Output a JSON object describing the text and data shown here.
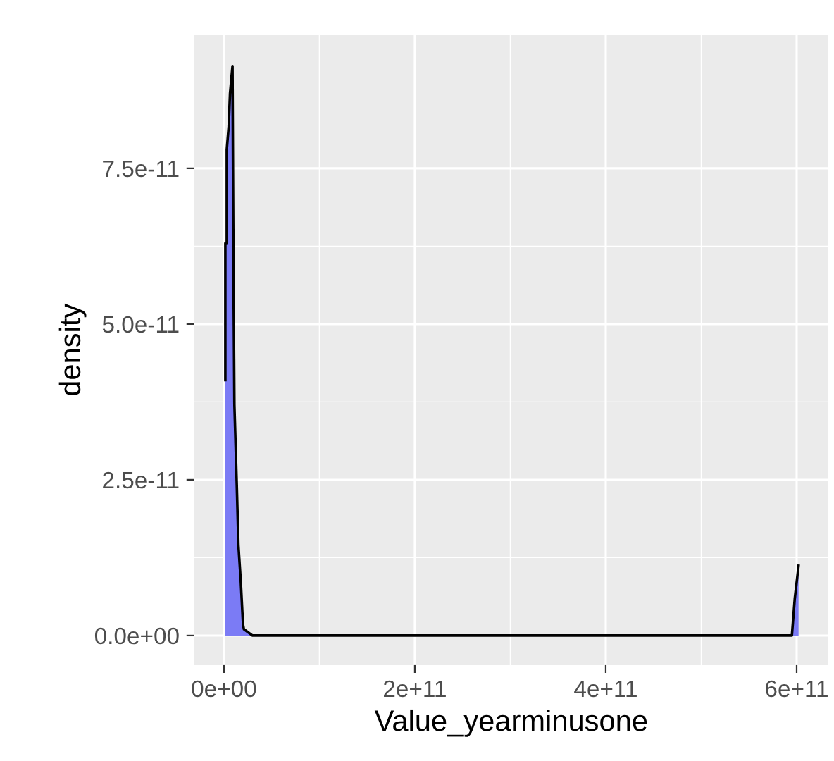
{
  "chart_data": {
    "type": "area",
    "xlabel": "Value_yearminusone",
    "ylabel": "density",
    "series": [
      {
        "color": "#7b7bf5",
        "x": [
          1500000000.0,
          1500000000.0,
          3000000000.0,
          3000000000.0,
          5000000000.0,
          6400000000.0,
          9000000000.0,
          10000000000.0,
          11000000000.0,
          13700000000.0,
          15200000000.0,
          17700000000.0,
          20000000000.0,
          21000000000.0,
          30000000000.0,
          100000000000.0,
          200000000000.0,
          300000000000.0,
          400000000000.0,
          500000000000.0,
          595000000000.0,
          598000000000.0,
          602000000000.0
        ],
        "values": [
          4.1e-11,
          6.3e-11,
          6.3e-11,
          7.8e-11,
          8.17e-11,
          8.7e-11,
          9.14e-11,
          5.9e-11,
          3.7e-11,
          2.3e-11,
          1.45e-11,
          8.6e-12,
          1.8e-12,
          1e-12,
          0,
          0,
          0,
          0,
          0,
          0,
          0,
          5.9e-12,
          1.12e-11
        ]
      }
    ],
    "xlim": [
      -31000000000.0,
      633000000000.0
    ],
    "ylim": [
      -4.75e-12,
      9.64e-11
    ],
    "xticks": [
      {
        "value": 0,
        "label": "0e+00"
      },
      {
        "value": 200000000000.0,
        "label": "2e+11"
      },
      {
        "value": 400000000000.0,
        "label": "4e+11"
      },
      {
        "value": 600000000000.0,
        "label": "6e+11"
      }
    ],
    "yticks": [
      {
        "value": 0,
        "label": "0.0e+00"
      },
      {
        "value": 2.5e-11,
        "label": "2.5e-11"
      },
      {
        "value": 5e-11,
        "label": "5.0e-11"
      },
      {
        "value": 7.5e-11,
        "label": "7.5e-11"
      }
    ],
    "grid": true
  }
}
